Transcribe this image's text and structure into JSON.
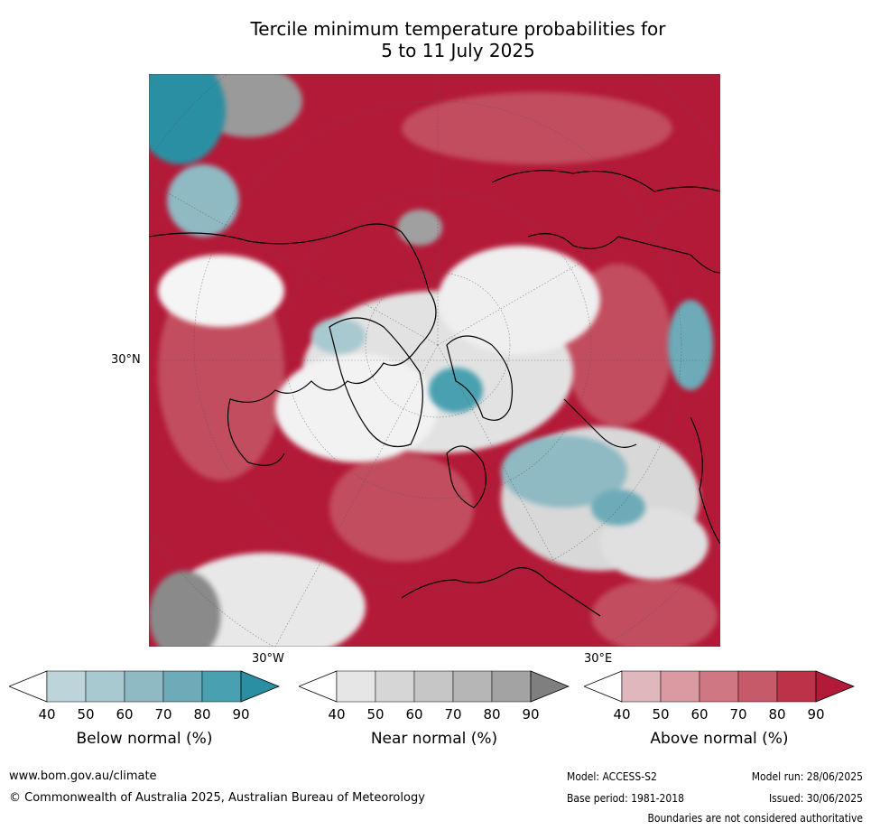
{
  "title_line1": "Tercile minimum temperature probabilities for",
  "title_line2": "5 to 11 July 2025",
  "map": {
    "lat_label": "30°N",
    "lon_label_left": "30°W",
    "lon_label_right": "30°E",
    "colors": {
      "above": "#b31a38",
      "near": "#c8c8c8",
      "below": "#2a8fa3"
    }
  },
  "legends": [
    {
      "label": "Below normal (%)",
      "ticks": [
        "40",
        "50",
        "60",
        "70",
        "80",
        "90"
      ],
      "colors": [
        "#ffffff",
        "#bcd4da",
        "#a8c9cf",
        "#8fb9c3",
        "#6dabb8",
        "#48a0b0",
        "#2a8fa3"
      ]
    },
    {
      "label": "Near normal (%)",
      "ticks": [
        "40",
        "50",
        "60",
        "70",
        "80",
        "90"
      ],
      "colors": [
        "#ffffff",
        "#e6e6e6",
        "#d6d6d6",
        "#c6c6c6",
        "#b6b6b6",
        "#a3a3a3",
        "#7f7f7f"
      ]
    },
    {
      "label": "Above normal (%)",
      "ticks": [
        "40",
        "50",
        "60",
        "70",
        "80",
        "90"
      ],
      "colors": [
        "#ffffff",
        "#e0b7bd",
        "#d99aa2",
        "#cf7782",
        "#c65a68",
        "#bc3349",
        "#b31a38"
      ]
    }
  ],
  "footer": {
    "website": "www.bom.gov.au/climate",
    "copyright": "© Commonwealth of Australia 2025, Australian Bureau of Meteorology",
    "model": "Model: ACCESS-S2",
    "model_run": "Model run: 28/06/2025",
    "base_period": "Base period: 1981-2018",
    "issued": "Issued: 30/06/2025",
    "disclaimer": "Boundaries are not considered authoritative"
  }
}
